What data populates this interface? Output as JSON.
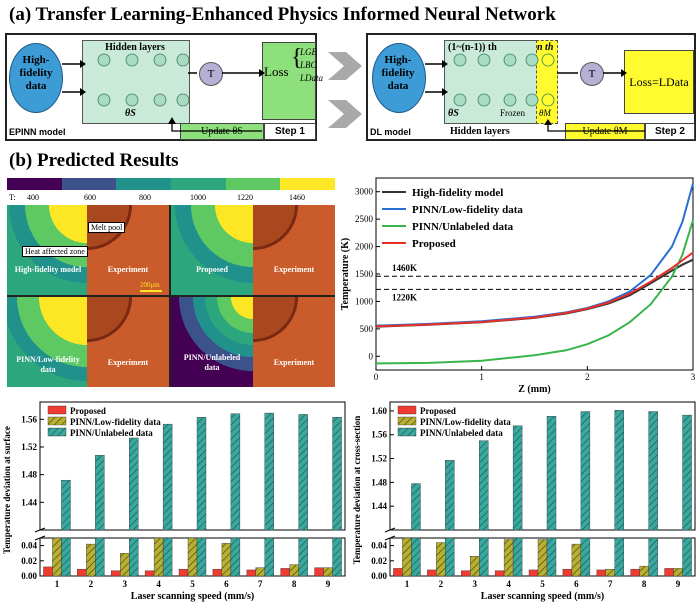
{
  "section_a": {
    "title": "(a) Transfer Learning-Enhanced Physics Informed Neural Network",
    "left": {
      "hf_line1": "High-",
      "hf_line2": "fidelity",
      "hf_line3": "data",
      "hidden_label": "Hidden layers",
      "theta_label": "θS",
      "t_label": "T",
      "loss_word": "Loss",
      "loss_terms": [
        "LGE",
        "LBC",
        "LData"
      ],
      "model_label": "EPINN model",
      "update_label": "Update θS",
      "step_label": "Step 1"
    },
    "right": {
      "hf_line1": "High-",
      "hf_line2": "fidelity",
      "hf_line3": "data",
      "layers_label": "(1~(n-1)) th",
      "nth_label": "n th",
      "theta_s_label": "θS",
      "frozen_label": "Frozen",
      "theta_m_label": "θM",
      "hidden_label": "Hidden layers",
      "t_label": "T",
      "loss_label": "Loss=LData",
      "model_label": "DL model",
      "update_label": "Update θM",
      "step_label": "Step 2"
    }
  },
  "section_b": {
    "title": "(b) Predicted Results",
    "colorbar": {
      "prefix": "T:",
      "ticks": [
        "400",
        "600",
        "800",
        "1000",
        "1220",
        "1460"
      ],
      "colors": [
        "#440154",
        "#3b528b",
        "#21918c",
        "#2ca67c",
        "#5ec962",
        "#fde725"
      ]
    },
    "maps": {
      "melt_pool": "Melt pool",
      "haz": "Heat affected zone",
      "hf_model": "High-fidelity model",
      "experiment": "Experiment",
      "proposed": "Proposed",
      "pinn_low_1": "PINN/Low-fidelity",
      "pinn_low_2": "data",
      "pinn_unl_1": "PINN/Unlabeled",
      "pinn_unl_2": "data",
      "scale": "200μm"
    }
  },
  "chart_data": [
    {
      "type": "line",
      "xlabel": "Z (mm)",
      "ylabel": "Temperature (K)",
      "xlim": [
        0,
        3
      ],
      "ylim": [
        -250,
        3250
      ],
      "xticks": [
        0,
        1,
        2,
        3
      ],
      "yticks": [
        0,
        500,
        1000,
        1500,
        2000,
        2500,
        3000
      ],
      "legend_position": "top-left",
      "reference_lines": [
        {
          "y": 1460,
          "label": "1460K"
        },
        {
          "y": 1220,
          "label": "1220K"
        }
      ],
      "x": [
        0,
        0.5,
        1.0,
        1.5,
        1.8,
        2.0,
        2.2,
        2.4,
        2.6,
        2.8,
        2.9,
        3.0
      ],
      "series": [
        {
          "name": "High-fidelity model",
          "color": "#333333",
          "values": [
            540,
            575,
            620,
            700,
            780,
            860,
            960,
            1110,
            1330,
            1560,
            1670,
            1760
          ]
        },
        {
          "name": "PINN/Low-fidelity data",
          "color": "#2b6fd6",
          "values": [
            560,
            590,
            640,
            720,
            800,
            880,
            1000,
            1180,
            1480,
            2000,
            2450,
            3150
          ]
        },
        {
          "name": "PINN/Unlabeled data",
          "color": "#3ab54a",
          "values": [
            -130,
            -120,
            -80,
            20,
            110,
            220,
            380,
            620,
            950,
            1450,
            1850,
            2480
          ]
        },
        {
          "name": "Proposed",
          "color": "#e8302a",
          "values": [
            545,
            580,
            625,
            705,
            790,
            870,
            980,
            1140,
            1360,
            1610,
            1750,
            1890
          ]
        }
      ]
    },
    {
      "type": "bar",
      "ylabel": "Temperature deviation at surface",
      "xlabel": "Laser scanning speed (mm/s)",
      "categories": [
        "1",
        "2",
        "3",
        "4",
        "5",
        "6",
        "7",
        "8",
        "9"
      ],
      "lower_yticks": [
        "0.00",
        "0.02",
        "0.04"
      ],
      "upper_yticks": [
        "1.44",
        "1.48",
        "1.52",
        "1.56"
      ],
      "series": [
        {
          "name": "Proposed",
          "color": "#ef3b32",
          "values": [
            0.012,
            0.009,
            0.007,
            0.007,
            0.009,
            0.009,
            0.008,
            0.01,
            0.011
          ]
        },
        {
          "name": "PINN/Low-fidelity data",
          "color": "#b8b032",
          "values": [
            0.052,
            0.042,
            0.03,
            0.051,
            0.051,
            0.043,
            0.011,
            0.015,
            0.011
          ]
        },
        {
          "name": "PINN/Unlabeled data",
          "color": "#3aa89e",
          "values": [
            1.472,
            1.508,
            1.533,
            1.553,
            1.563,
            1.568,
            1.569,
            1.567,
            1.563
          ]
        }
      ]
    },
    {
      "type": "bar",
      "ylabel": "Temperature deviation at cross-section",
      "xlabel": "Laser scanning speed (mm/s)",
      "categories": [
        "1",
        "2",
        "3",
        "4",
        "5",
        "6",
        "7",
        "8",
        "9"
      ],
      "lower_yticks": [
        "0.00",
        "0.02",
        "0.04"
      ],
      "upper_yticks": [
        "1.44",
        "1.48",
        "1.52",
        "1.56",
        "1.60"
      ],
      "series": [
        {
          "name": "Proposed",
          "color": "#ef3b32",
          "values": [
            0.01,
            0.008,
            0.007,
            0.007,
            0.008,
            0.009,
            0.008,
            0.009,
            0.01
          ]
        },
        {
          "name": "PINN/Low-fidelity data",
          "color": "#b8b032",
          "values": [
            0.05,
            0.044,
            0.026,
            0.048,
            0.048,
            0.042,
            0.009,
            0.013,
            0.01
          ]
        },
        {
          "name": "PINN/Unlabeled data",
          "color": "#3aa89e",
          "values": [
            1.478,
            1.517,
            1.55,
            1.575,
            1.591,
            1.599,
            1.601,
            1.599,
            1.593
          ]
        }
      ]
    }
  ]
}
